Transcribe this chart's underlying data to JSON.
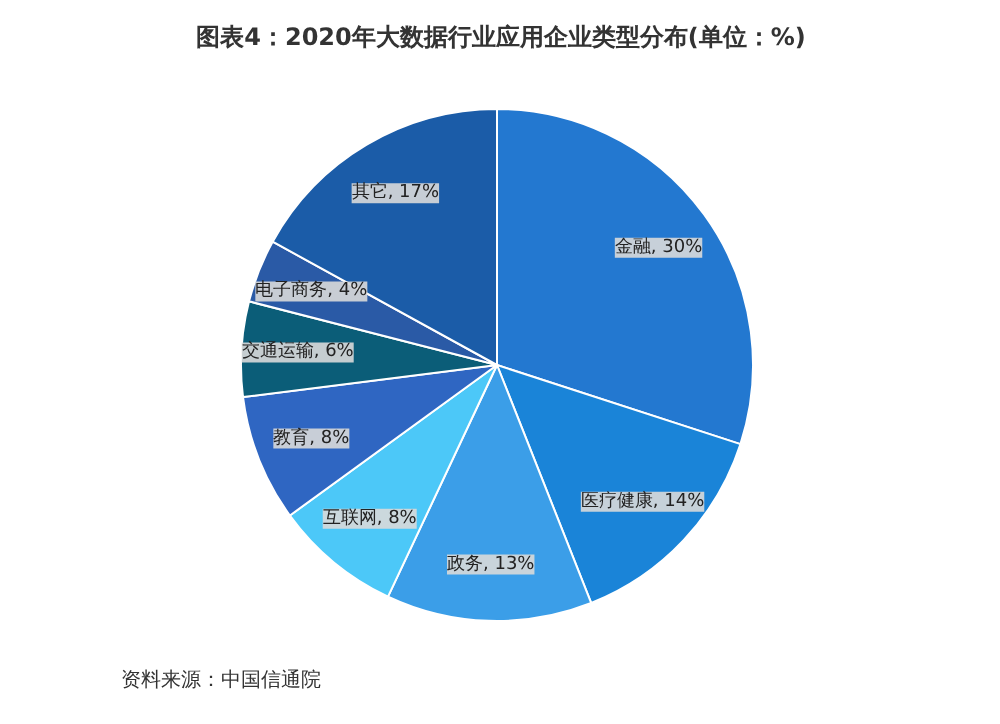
{
  "chart_data": {
    "type": "pie",
    "title": "图表4：2020年大数据行业应用企业类型分布(单位：%)",
    "categories": [
      "金融",
      "医疗健康",
      "政务",
      "互联网",
      "教育",
      "交通运输",
      "电子商务",
      "其它"
    ],
    "values": [
      30,
      14,
      13,
      8,
      8,
      6,
      4,
      17
    ],
    "colors": [
      "#2378d0",
      "#1a84d8",
      "#3b9ee8",
      "#4cc8f8",
      "#2f66c2",
      "#0b5d78",
      "#2a5aa6",
      "#1b5ca8"
    ],
    "value_labels": [
      "30%",
      "14%",
      "13%",
      "8%",
      "8%",
      "6%",
      "4%",
      "17%"
    ],
    "annotations": [
      "资料来源：中国信通院"
    ]
  }
}
